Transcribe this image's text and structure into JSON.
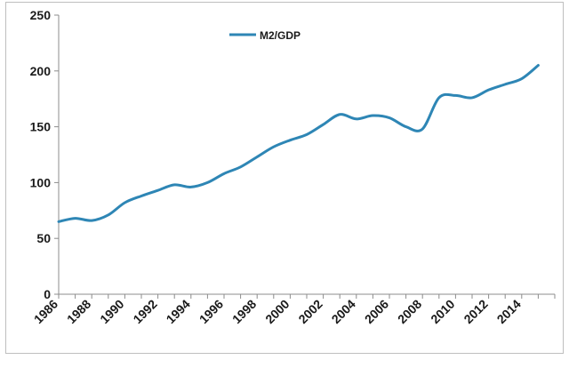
{
  "chart_data": {
    "type": "line",
    "title": "",
    "xlabel": "",
    "ylabel": "",
    "xlim": [
      1986,
      2016
    ],
    "ylim": [
      0,
      250
    ],
    "yticks": [
      0,
      50,
      100,
      150,
      200,
      250
    ],
    "xticks": [
      "1986",
      "1988",
      "1990",
      "1992",
      "1994",
      "1996",
      "1998",
      "2000",
      "2002",
      "2004",
      "2006",
      "2008",
      "2010",
      "2012",
      "2014"
    ],
    "grid": false,
    "legend": "top-left",
    "series": [
      {
        "name": "M2/GDP",
        "color": "#2e86b5",
        "x": [
          1986,
          1987,
          1988,
          1989,
          1990,
          1991,
          1992,
          1993,
          1994,
          1995,
          1996,
          1997,
          1998,
          1999,
          2000,
          2001,
          2002,
          2003,
          2004,
          2005,
          2006,
          2007,
          2008,
          2009,
          2010,
          2011,
          2012,
          2013,
          2014,
          2015
        ],
        "values": [
          65,
          68,
          66,
          71,
          82,
          88,
          93,
          98,
          96,
          100,
          108,
          114,
          123,
          132,
          138,
          143,
          152,
          161,
          157,
          160,
          158,
          150,
          148,
          176,
          178,
          176,
          183,
          188,
          193,
          205
        ]
      }
    ]
  }
}
